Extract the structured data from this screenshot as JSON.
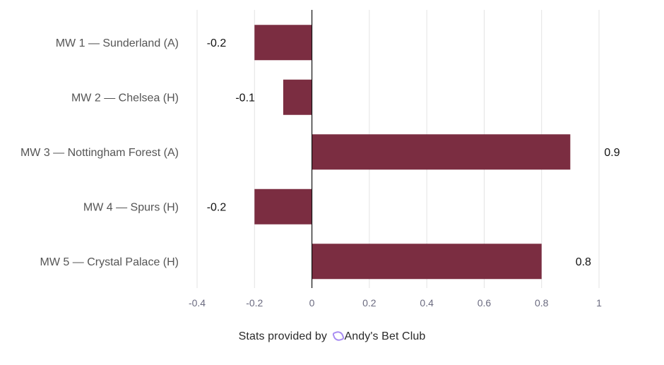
{
  "chart_data": {
    "type": "bar",
    "orientation": "horizontal",
    "categories": [
      "MW 1 — Sunderland (A)",
      "MW 2 — Chelsea (H)",
      "MW 3 — Nottingham Forest (A)",
      "MW 4 — Spurs (H)",
      "MW 5 — Crystal Palace (H)"
    ],
    "values": [
      -0.2,
      -0.1,
      0.9,
      -0.2,
      0.8
    ],
    "data_labels": [
      "-0.2",
      "-0.1",
      "0.9",
      "-0.2",
      "0.8"
    ],
    "xlim": [
      -0.4,
      1
    ],
    "xticks": [
      -0.4,
      -0.2,
      0,
      0.2,
      0.4,
      0.6,
      0.8,
      1
    ],
    "xtick_labels": [
      "-0.4",
      "-0.2",
      "0",
      "0.2",
      "0.4",
      "0.6",
      "0.8",
      "1"
    ],
    "bar_color": "#7b2d41",
    "grid": true,
    "title": "",
    "xlabel": "",
    "ylabel": ""
  },
  "footer": {
    "prefix": "Stats provided by",
    "brand": "Andy's Bet Club",
    "brand_icon": "andys-bet-club-logo-icon",
    "brand_icon_color": "#a88cf2"
  }
}
